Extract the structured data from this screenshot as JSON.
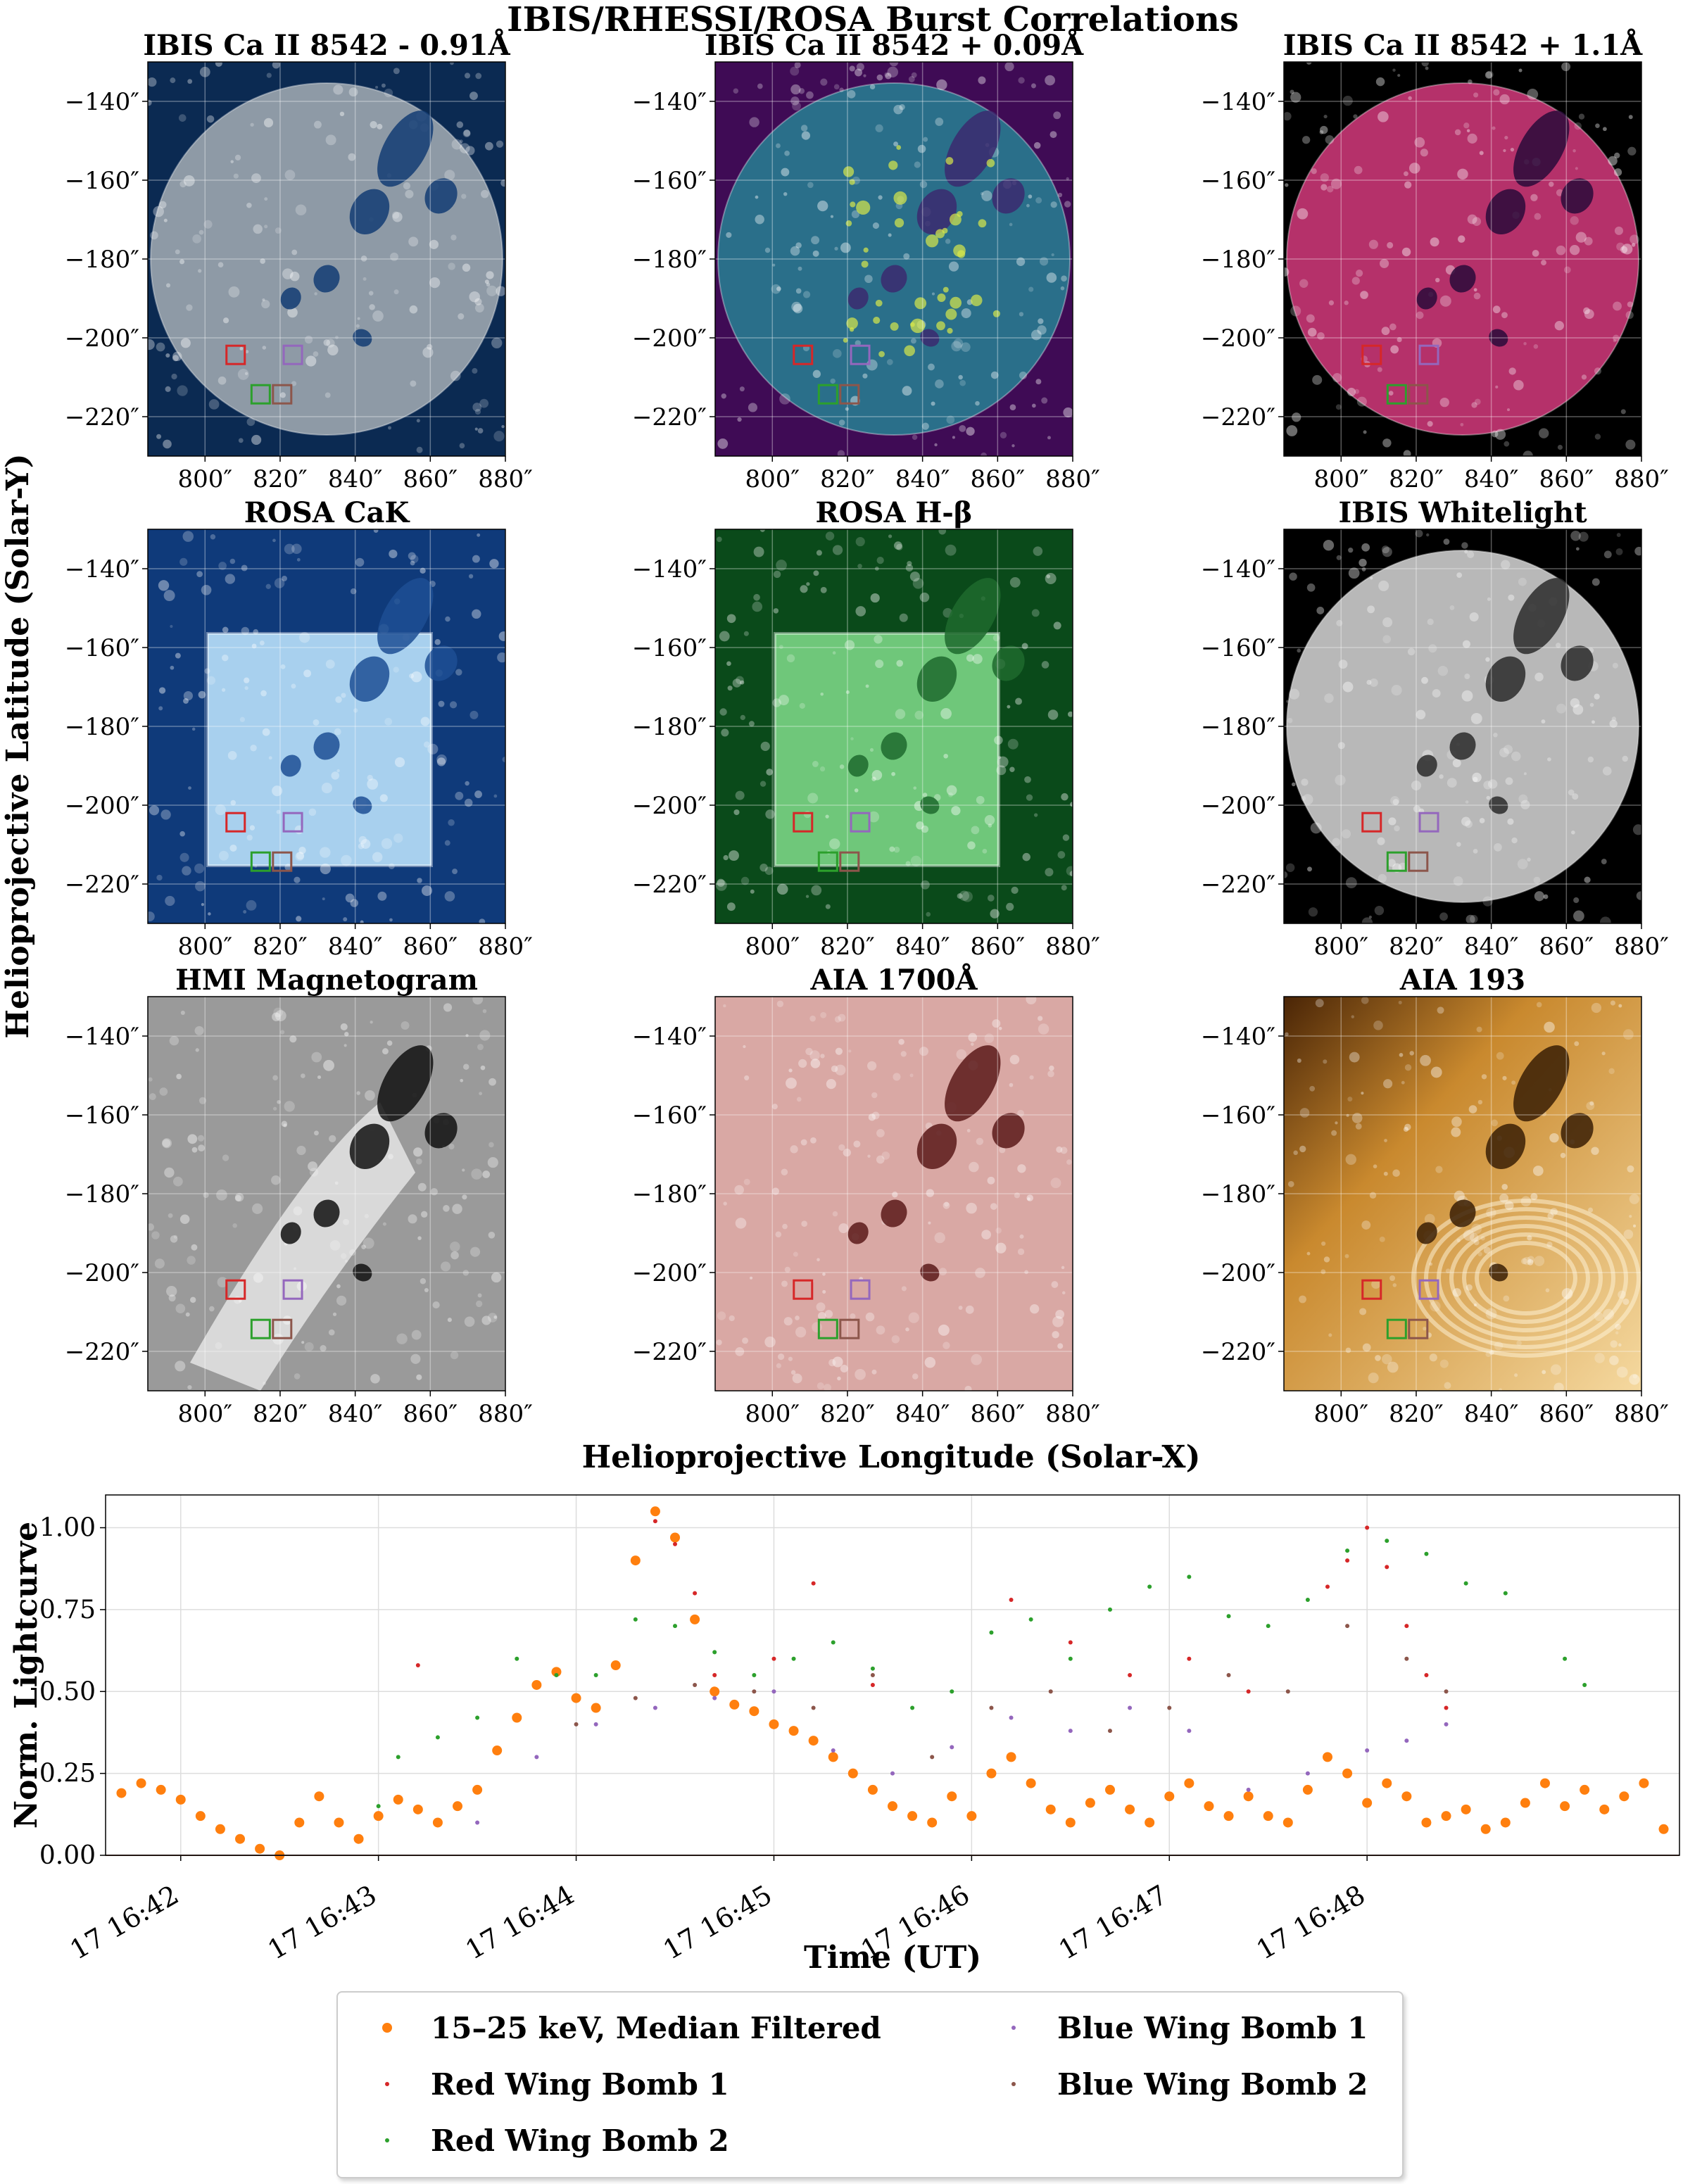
{
  "figure_title": "IBIS/RHESSI/ROSA Burst Correlations",
  "shared_axis_labels": {
    "y": "Helioprojective Latitude (Solar-Y)",
    "x": "Helioprojective Longitude (Solar-X)"
  },
  "panel_axes": {
    "x_ticks": [
      "800″",
      "820″",
      "840″",
      "860″",
      "880″"
    ],
    "y_ticks": [
      "−140″",
      "−160″",
      "−180″",
      "−200″",
      "−220″"
    ]
  },
  "panels": [
    {
      "title": "IBIS Ca II 8542 - 0.91Å",
      "style": "ibis_blue",
      "bg": "#0b2a52",
      "disk": "#8e9aa6",
      "dark": "#133c73"
    },
    {
      "title": "IBIS Ca II 8542 + 0.09Å",
      "style": "ibis_viridis",
      "bg": "#3f0b55",
      "disk": "#2a6f8a",
      "dark": "#3b2a6e"
    },
    {
      "title": "IBIS Ca II 8542 + 1.1Å",
      "style": "ibis_inferno",
      "bg": "#000000",
      "disk": "#b5316a",
      "dark": "#2a0a3a"
    },
    {
      "title": "ROSA CaK",
      "style": "rosa_blue",
      "bg": "#0f3a7a",
      "disk": "#a8d0ee",
      "dark": "#1d4f94"
    },
    {
      "title": "ROSA H-β",
      "style": "rosa_green",
      "bg": "#0a4a1a",
      "disk": "#6fc77a",
      "dark": "#1f6a2e"
    },
    {
      "title": "IBIS Whitelight",
      "style": "white_disk",
      "bg": "#000000",
      "disk": "#b8b8b8",
      "dark": "#2a2a2a"
    },
    {
      "title": "HMI Magnetogram",
      "style": "hmi",
      "bg": "#9a9a9a",
      "disk": "#9a9a9a",
      "dark": "#111111"
    },
    {
      "title": "AIA 1700Å",
      "style": "aia1700",
      "bg": "#d9a8a4",
      "disk": "#d9a8a4",
      "dark": "#5a1a1a"
    },
    {
      "title": "AIA 193",
      "style": "aia193",
      "bg": "#c9892e",
      "disk": "#c9892e",
      "dark": "#3a1e05"
    }
  ],
  "colors": {
    "orange": "#ff7f0e",
    "red": "#d62728",
    "green": "#2ca02c",
    "purple": "#9467bd",
    "brown": "#8c564b"
  },
  "chart_data": {
    "type": "scatter",
    "xlabel": "Time (UT)",
    "ylabel": "Norm. Lightcurve",
    "x_ticks": [
      "17 16:42",
      "17 16:43",
      "17 16:44",
      "17 16:45",
      "17 16:46",
      "17 16:47",
      "17 16:48"
    ],
    "y_ticks": [
      "0.00",
      "0.25",
      "0.50",
      "0.75",
      "1.00"
    ],
    "ylim": [
      0,
      1.1
    ],
    "xlim_minutes_after_16_41": [
      0.62,
      8.58
    ],
    "grid": true,
    "legend_location": "below plot",
    "series": [
      {
        "name": "15–25 keV, Median Filtered",
        "color": "orange",
        "marker": "large",
        "points": [
          [
            0.7,
            0.19
          ],
          [
            0.8,
            0.22
          ],
          [
            0.9,
            0.2
          ],
          [
            1.0,
            0.17
          ],
          [
            1.1,
            0.12
          ],
          [
            1.2,
            0.08
          ],
          [
            1.3,
            0.05
          ],
          [
            1.4,
            0.02
          ],
          [
            1.5,
            0.0
          ],
          [
            1.6,
            0.1
          ],
          [
            1.7,
            0.18
          ],
          [
            1.8,
            0.1
          ],
          [
            1.9,
            0.05
          ],
          [
            2.0,
            0.12
          ],
          [
            2.1,
            0.17
          ],
          [
            2.2,
            0.14
          ],
          [
            2.3,
            0.1
          ],
          [
            2.4,
            0.15
          ],
          [
            2.5,
            0.2
          ],
          [
            2.6,
            0.32
          ],
          [
            2.7,
            0.42
          ],
          [
            2.8,
            0.52
          ],
          [
            2.9,
            0.56
          ],
          [
            3.0,
            0.48
          ],
          [
            3.1,
            0.45
          ],
          [
            3.2,
            0.58
          ],
          [
            3.3,
            0.9
          ],
          [
            3.4,
            1.05
          ],
          [
            3.5,
            0.97
          ],
          [
            3.6,
            0.72
          ],
          [
            3.7,
            0.5
          ],
          [
            3.8,
            0.46
          ],
          [
            3.9,
            0.44
          ],
          [
            4.0,
            0.4
          ],
          [
            4.1,
            0.38
          ],
          [
            4.2,
            0.35
          ],
          [
            4.3,
            0.3
          ],
          [
            4.4,
            0.25
          ],
          [
            4.5,
            0.2
          ],
          [
            4.6,
            0.15
          ],
          [
            4.7,
            0.12
          ],
          [
            4.8,
            0.1
          ],
          [
            4.9,
            0.18
          ],
          [
            5.0,
            0.12
          ],
          [
            5.1,
            0.25
          ],
          [
            5.2,
            0.3
          ],
          [
            5.3,
            0.22
          ],
          [
            5.4,
            0.14
          ],
          [
            5.5,
            0.1
          ],
          [
            5.6,
            0.16
          ],
          [
            5.7,
            0.2
          ],
          [
            5.8,
            0.14
          ],
          [
            5.9,
            0.1
          ],
          [
            6.0,
            0.18
          ],
          [
            6.1,
            0.22
          ],
          [
            6.2,
            0.15
          ],
          [
            6.3,
            0.12
          ],
          [
            6.4,
            0.18
          ],
          [
            6.5,
            0.12
          ],
          [
            6.6,
            0.1
          ],
          [
            6.7,
            0.2
          ],
          [
            6.8,
            0.3
          ],
          [
            6.9,
            0.25
          ],
          [
            7.0,
            0.16
          ],
          [
            7.1,
            0.22
          ],
          [
            7.2,
            0.18
          ],
          [
            7.3,
            0.1
          ],
          [
            7.4,
            0.12
          ],
          [
            7.5,
            0.14
          ],
          [
            7.6,
            0.08
          ],
          [
            7.7,
            0.1
          ],
          [
            7.8,
            0.16
          ],
          [
            7.9,
            0.22
          ],
          [
            8.0,
            0.15
          ],
          [
            8.1,
            0.2
          ],
          [
            8.2,
            0.14
          ],
          [
            8.3,
            0.18
          ],
          [
            8.4,
            0.22
          ],
          [
            8.5,
            0.08
          ]
        ]
      },
      {
        "name": "Red Wing Bomb 1",
        "color": "red",
        "marker": "small",
        "points": [
          [
            2.2,
            0.58
          ],
          [
            3.4,
            1.02
          ],
          [
            3.5,
            0.95
          ],
          [
            3.6,
            0.8
          ],
          [
            3.7,
            0.55
          ],
          [
            4.0,
            0.6
          ],
          [
            4.2,
            0.83
          ],
          [
            4.5,
            0.52
          ],
          [
            5.2,
            0.78
          ],
          [
            5.5,
            0.65
          ],
          [
            5.8,
            0.55
          ],
          [
            6.1,
            0.6
          ],
          [
            6.4,
            0.5
          ],
          [
            6.8,
            0.82
          ],
          [
            6.9,
            0.9
          ],
          [
            7.0,
            1.0
          ],
          [
            7.1,
            0.88
          ],
          [
            7.2,
            0.7
          ],
          [
            7.3,
            0.55
          ],
          [
            7.4,
            0.45
          ]
        ]
      },
      {
        "name": "Red Wing Bomb 2",
        "color": "green",
        "marker": "small",
        "points": [
          [
            2.0,
            0.15
          ],
          [
            2.1,
            0.3
          ],
          [
            2.3,
            0.36
          ],
          [
            2.5,
            0.42
          ],
          [
            2.7,
            0.6
          ],
          [
            2.9,
            0.55
          ],
          [
            3.1,
            0.55
          ],
          [
            3.3,
            0.72
          ],
          [
            3.5,
            0.7
          ],
          [
            3.7,
            0.62
          ],
          [
            3.9,
            0.55
          ],
          [
            4.1,
            0.6
          ],
          [
            4.3,
            0.65
          ],
          [
            4.5,
            0.57
          ],
          [
            4.7,
            0.45
          ],
          [
            4.9,
            0.5
          ],
          [
            5.1,
            0.68
          ],
          [
            5.3,
            0.72
          ],
          [
            5.5,
            0.6
          ],
          [
            5.7,
            0.75
          ],
          [
            5.9,
            0.82
          ],
          [
            6.1,
            0.85
          ],
          [
            6.3,
            0.73
          ],
          [
            6.5,
            0.7
          ],
          [
            6.7,
            0.78
          ],
          [
            6.9,
            0.93
          ],
          [
            7.1,
            0.96
          ],
          [
            7.3,
            0.92
          ],
          [
            7.5,
            0.83
          ],
          [
            7.7,
            0.8
          ],
          [
            8.0,
            0.6
          ],
          [
            8.1,
            0.52
          ]
        ]
      },
      {
        "name": "Blue Wing Bomb 1",
        "color": "purple",
        "marker": "small",
        "points": [
          [
            2.5,
            0.1
          ],
          [
            2.8,
            0.3
          ],
          [
            3.1,
            0.4
          ],
          [
            3.4,
            0.45
          ],
          [
            3.7,
            0.48
          ],
          [
            4.0,
            0.5
          ],
          [
            4.3,
            0.32
          ],
          [
            4.6,
            0.25
          ],
          [
            4.9,
            0.33
          ],
          [
            5.2,
            0.42
          ],
          [
            5.5,
            0.38
          ],
          [
            5.8,
            0.45
          ],
          [
            6.1,
            0.38
          ],
          [
            6.4,
            0.2
          ],
          [
            6.7,
            0.25
          ],
          [
            7.0,
            0.32
          ],
          [
            7.2,
            0.35
          ],
          [
            7.4,
            0.4
          ]
        ]
      },
      {
        "name": "Blue Wing Bomb 2",
        "color": "brown",
        "marker": "small",
        "points": [
          [
            3.0,
            0.4
          ],
          [
            3.3,
            0.48
          ],
          [
            3.6,
            0.52
          ],
          [
            3.9,
            0.5
          ],
          [
            4.2,
            0.45
          ],
          [
            4.5,
            0.55
          ],
          [
            4.8,
            0.3
          ],
          [
            5.1,
            0.45
          ],
          [
            5.4,
            0.5
          ],
          [
            5.7,
            0.38
          ],
          [
            6.0,
            0.45
          ],
          [
            6.3,
            0.55
          ],
          [
            6.6,
            0.5
          ],
          [
            6.9,
            0.7
          ],
          [
            7.2,
            0.6
          ],
          [
            7.4,
            0.5
          ]
        ]
      }
    ]
  },
  "legend": [
    {
      "label": "15–25 keV, Median Filtered",
      "color": "orange",
      "size": "large"
    },
    {
      "label": "Red Wing Bomb 1",
      "color": "red",
      "size": "small"
    },
    {
      "label": "Red Wing Bomb 2",
      "color": "green",
      "size": "small"
    },
    {
      "label": "Blue Wing Bomb 1",
      "color": "purple",
      "size": "small"
    },
    {
      "label": "Blue Wing Bomb 2",
      "color": "brown",
      "size": "small"
    }
  ]
}
